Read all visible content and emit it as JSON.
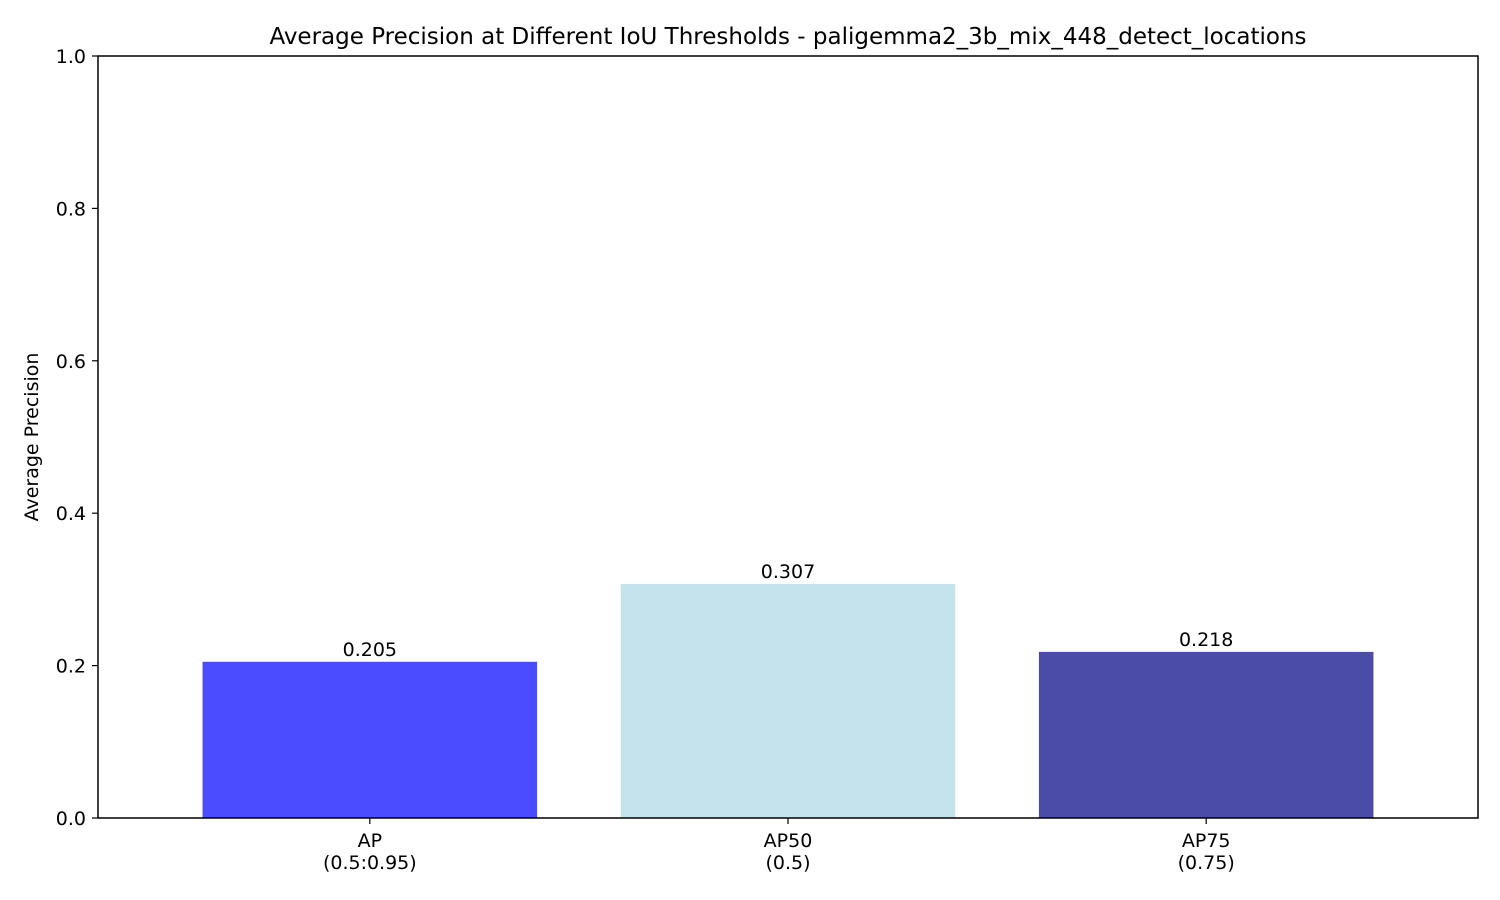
{
  "chart_data": {
    "type": "bar",
    "title": "Average Precision at Different IoU Thresholds - paligemma2_3b_mix_448_detect_locations",
    "xlabel": "",
    "ylabel": "Average Precision",
    "ylim": [
      0,
      1.0
    ],
    "yticks": [
      "0.0",
      "0.2",
      "0.4",
      "0.6",
      "0.8",
      "1.0"
    ],
    "categories": [
      [
        "AP",
        "(0.5:0.95)"
      ],
      [
        "AP50",
        "(0.5)"
      ],
      [
        "AP75",
        "(0.75)"
      ]
    ],
    "values": [
      0.205,
      0.307,
      0.218
    ],
    "value_labels": [
      "0.205",
      "0.307",
      "0.218"
    ],
    "colors": [
      "#4b4bff",
      "#c5e3ec",
      "#4b4ca8"
    ],
    "grid": false,
    "legend": "none"
  }
}
